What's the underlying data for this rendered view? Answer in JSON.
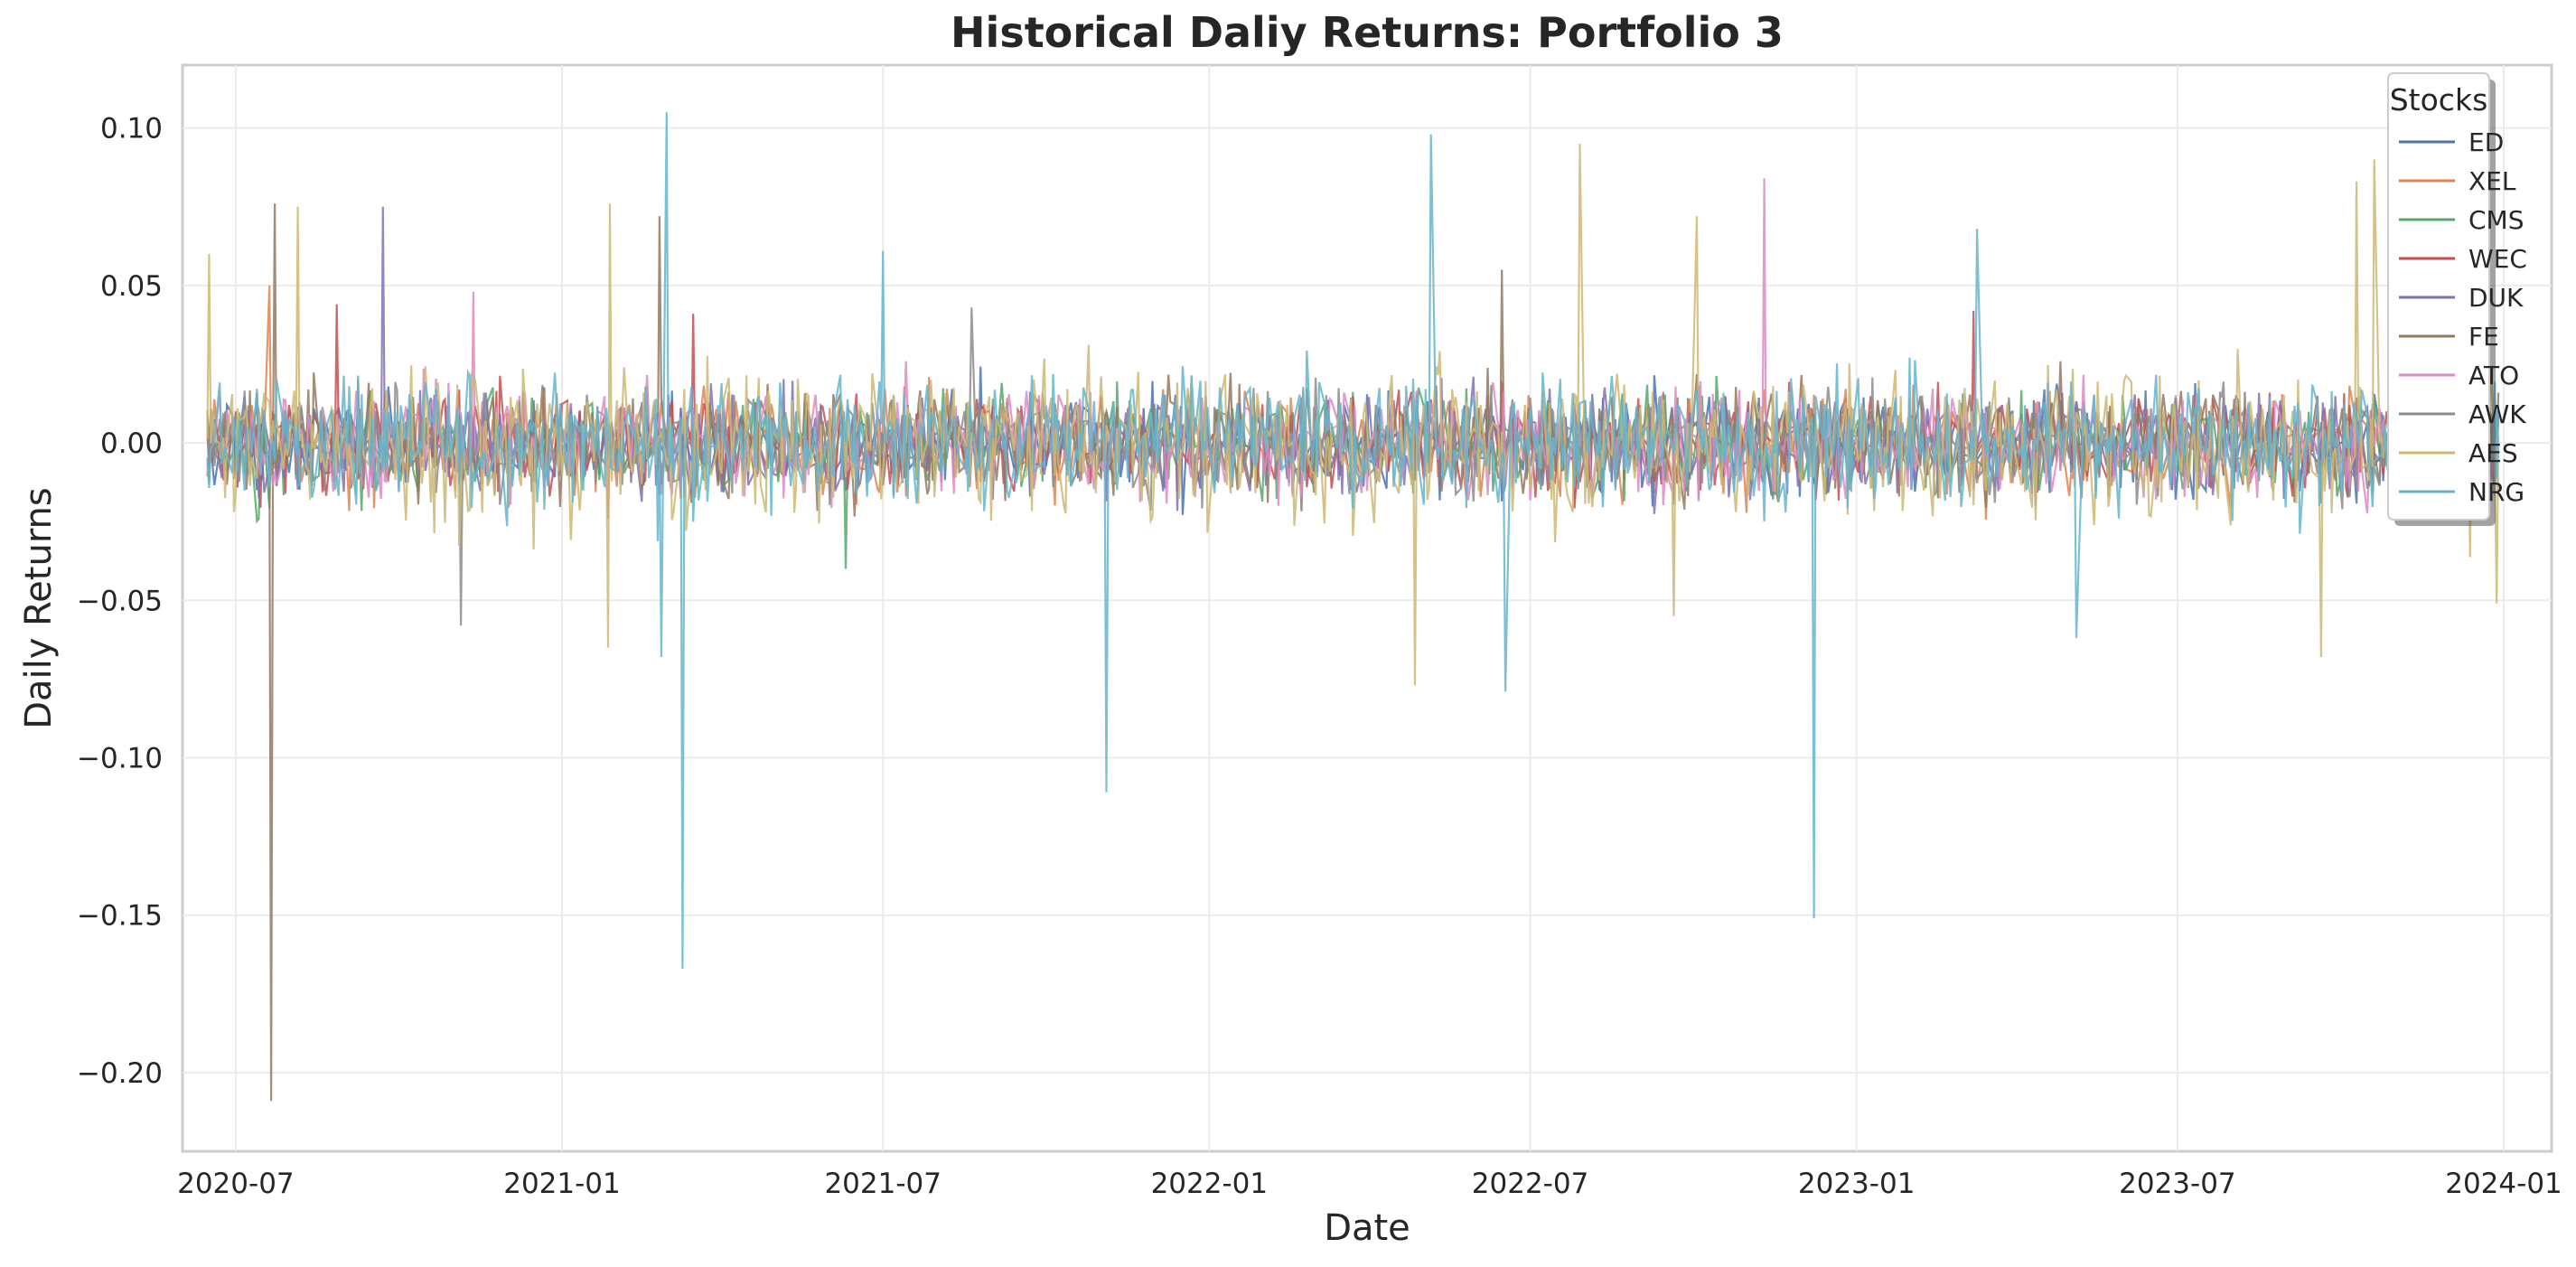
{
  "chart_data": {
    "type": "line",
    "title": "Historical Daliy Returns: Portfolio 3",
    "xlabel": "Date",
    "ylabel": "Daily Returns",
    "x_range": [
      "2020-06-01",
      "2024-01-28"
    ],
    "data_range": [
      "2020-06-15",
      "2023-12-29"
    ],
    "ylim": [
      -0.225,
      0.12
    ],
    "x_ticks": [
      "2020-07",
      "2021-01",
      "2021-07",
      "2022-01",
      "2022-07",
      "2023-01",
      "2023-07",
      "2024-01"
    ],
    "y_ticks": [
      0.1,
      0.05,
      0.0,
      -0.05,
      -0.1,
      -0.15,
      -0.2
    ],
    "y_tick_labels": [
      "0.10",
      "0.05",
      "0.00",
      "−0.05",
      "−0.10",
      "−0.15",
      "−0.20"
    ],
    "grid": true,
    "legend": {
      "title": "Stocks",
      "placement": "top-right"
    },
    "series": [
      {
        "name": "ED",
        "color": "#4c72b0",
        "volatility": 0.012,
        "spikes": [
          [
            "2020-09-12",
            0.033
          ]
        ]
      },
      {
        "name": "XEL",
        "color": "#dd8452",
        "volatility": 0.012,
        "spikes": [
          [
            "2020-07-20",
            0.05
          ]
        ]
      },
      {
        "name": "CMS",
        "color": "#55a868",
        "volatility": 0.012,
        "spikes": [
          [
            "2021-06-10",
            -0.04
          ]
        ]
      },
      {
        "name": "WEC",
        "color": "#c44e52",
        "volatility": 0.012,
        "spikes": [
          [
            "2020-08-27",
            0.044
          ],
          [
            "2021-03-16",
            0.041
          ],
          [
            "2023-03-08",
            0.042
          ]
        ]
      },
      {
        "name": "DUK",
        "color": "#8172b3",
        "volatility": 0.012,
        "spikes": [
          [
            "2020-09-22",
            0.075
          ]
        ]
      },
      {
        "name": "FE",
        "color": "#937860",
        "volatility": 0.013,
        "spikes": [
          [
            "2020-07-21",
            -0.209
          ],
          [
            "2020-07-23",
            0.076
          ],
          [
            "2021-02-25",
            0.072
          ],
          [
            "2022-06-15",
            0.055
          ]
        ]
      },
      {
        "name": "ATO",
        "color": "#da8bc3",
        "volatility": 0.013,
        "spikes": [
          [
            "2020-11-12",
            0.048
          ],
          [
            "2022-11-10",
            0.084
          ]
        ]
      },
      {
        "name": "AWK",
        "color": "#8c8c8c",
        "volatility": 0.012,
        "spikes": [
          [
            "2020-11-05",
            -0.058
          ],
          [
            "2021-08-20",
            0.043
          ]
        ]
      },
      {
        "name": "AES",
        "color": "#ccb974",
        "volatility": 0.018,
        "spikes": [
          [
            "2020-06-16",
            0.06
          ],
          [
            "2020-08-05",
            0.075
          ],
          [
            "2021-01-28",
            0.076
          ],
          [
            "2021-01-27",
            -0.065
          ],
          [
            "2022-04-27",
            -0.077
          ],
          [
            "2022-07-29",
            0.095
          ],
          [
            "2022-09-20",
            -0.055
          ],
          [
            "2022-10-03",
            0.072
          ],
          [
            "2023-09-20",
            -0.068
          ],
          [
            "2023-10-10",
            0.083
          ],
          [
            "2023-10-20",
            0.09
          ],
          [
            "2023-12-28",
            -0.051
          ]
        ]
      },
      {
        "name": "NRG",
        "color": "#64b5cd",
        "volatility": 0.016,
        "spikes": [
          [
            "2021-03-01",
            0.105
          ],
          [
            "2021-03-10",
            -0.167
          ],
          [
            "2021-02-26",
            -0.068
          ],
          [
            "2021-07-01",
            0.061
          ],
          [
            "2021-11-04",
            -0.111
          ],
          [
            "2022-05-06",
            0.098
          ],
          [
            "2022-06-17",
            -0.079
          ],
          [
            "2022-12-08",
            -0.151
          ],
          [
            "2023-03-10",
            0.068
          ],
          [
            "2023-05-05",
            -0.062
          ]
        ]
      }
    ]
  }
}
